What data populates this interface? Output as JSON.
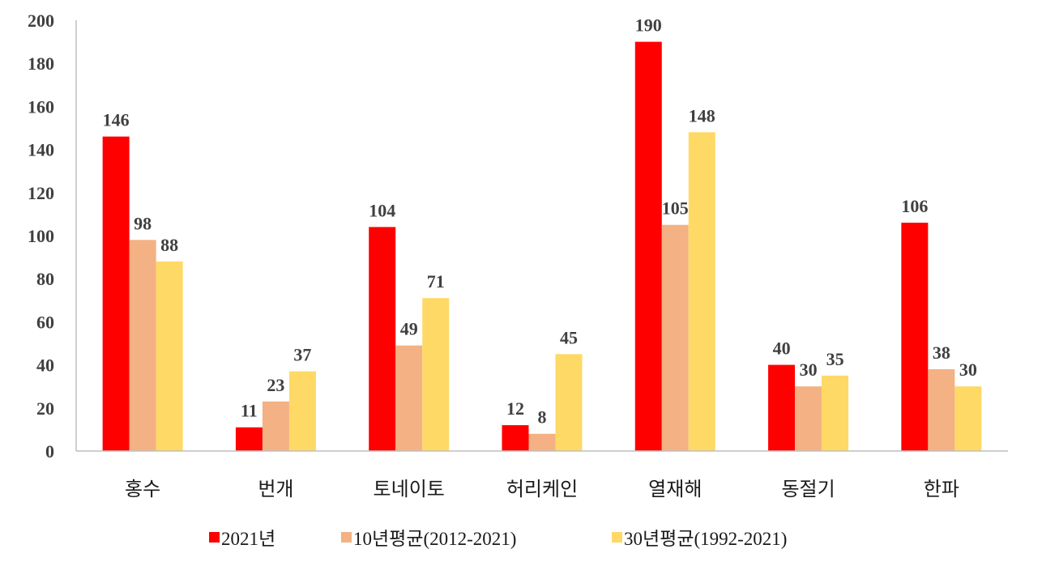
{
  "chart_data": {
    "type": "bar",
    "title": "",
    "xlabel": "",
    "ylabel": "",
    "ylim": [
      0,
      200
    ],
    "yticks": [
      "0",
      "20",
      "40",
      "60",
      "80",
      "100",
      "120",
      "140",
      "160",
      "180",
      "200"
    ],
    "grid": false,
    "legend_position": "bottom",
    "categories": [
      "홍수",
      "번개",
      "토네이토",
      "허리케인",
      "열재해",
      "동절기",
      "한파"
    ],
    "series": [
      {
        "name": "2021년",
        "color": "#ff0000",
        "values": [
          146,
          11,
          104,
          12,
          190,
          40,
          106
        ]
      },
      {
        "name": "10년평균(2012-2021)",
        "color": "#f4b183",
        "values": [
          98,
          23,
          49,
          8,
          105,
          30,
          38
        ]
      },
      {
        "name": "30년평균(1992-2021)",
        "color": "#ffd966",
        "values": [
          88,
          37,
          71,
          45,
          148,
          35,
          30
        ]
      }
    ]
  }
}
